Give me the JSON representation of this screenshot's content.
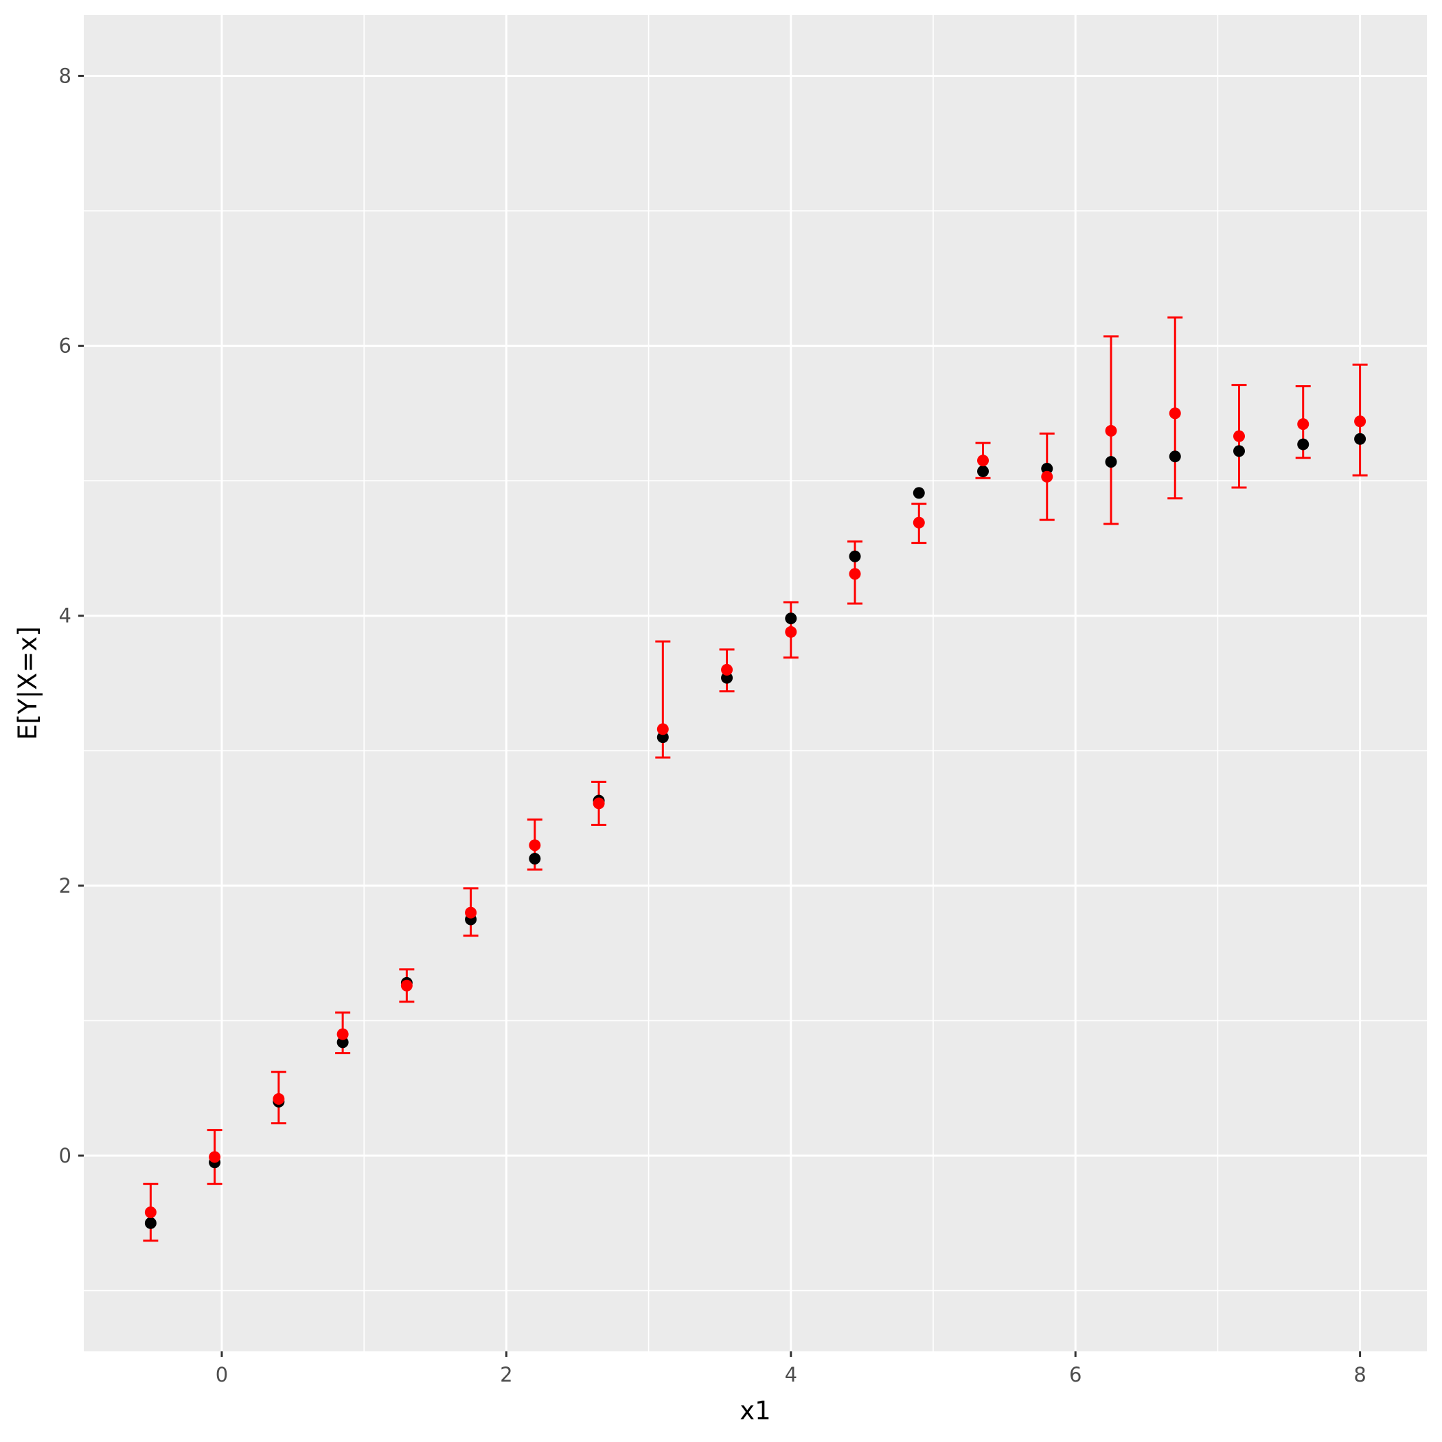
{
  "chart_data": {
    "type": "scatter",
    "title": "",
    "xlabel": "x1",
    "ylabel": "E[Y|X=x]",
    "xlim": [
      -0.97,
      8.47
    ],
    "ylim": [
      -1.45,
      8.45
    ],
    "x_ticks": [
      0,
      2,
      4,
      6,
      8
    ],
    "y_ticks": [
      0,
      2,
      4,
      6,
      8
    ],
    "grid": true,
    "legend": "none",
    "background": "#ebebeb",
    "colors": {
      "truth": "#000000",
      "estimate": "#ff0000",
      "grid": "#ffffff"
    },
    "x": [
      -0.5,
      -0.05,
      0.4,
      0.85,
      1.3,
      1.75,
      2.2,
      2.65,
      3.1,
      3.55,
      4.0,
      4.45,
      4.9,
      5.35,
      5.8,
      6.25,
      6.7,
      7.15,
      7.6,
      8.0
    ],
    "series": [
      {
        "values": [
          -0.5,
          -0.05,
          0.4,
          0.84,
          1.28,
          1.75,
          2.2,
          2.63,
          3.1,
          3.54,
          3.98,
          4.44,
          4.91,
          5.07,
          5.09,
          5.14,
          5.18,
          5.22,
          5.27,
          5.31
        ]
      },
      {
        "values": [
          -0.42,
          -0.01,
          0.42,
          0.9,
          1.26,
          1.8,
          2.3,
          2.61,
          3.16,
          3.6,
          3.88,
          4.31,
          4.69,
          5.15,
          5.03,
          5.37,
          5.5,
          5.33,
          5.42,
          5.44
        ],
        "lower": [
          -0.63,
          -0.21,
          0.24,
          0.76,
          1.14,
          1.63,
          2.12,
          2.45,
          2.95,
          3.44,
          3.69,
          4.09,
          4.54,
          5.02,
          4.71,
          4.68,
          4.87,
          4.95,
          5.17,
          5.04
        ],
        "upper": [
          -0.21,
          0.19,
          0.62,
          1.06,
          1.38,
          1.98,
          2.49,
          2.77,
          3.81,
          3.75,
          4.1,
          4.55,
          4.83,
          5.28,
          5.35,
          6.07,
          6.21,
          5.71,
          5.7,
          5.86
        ]
      }
    ]
  }
}
